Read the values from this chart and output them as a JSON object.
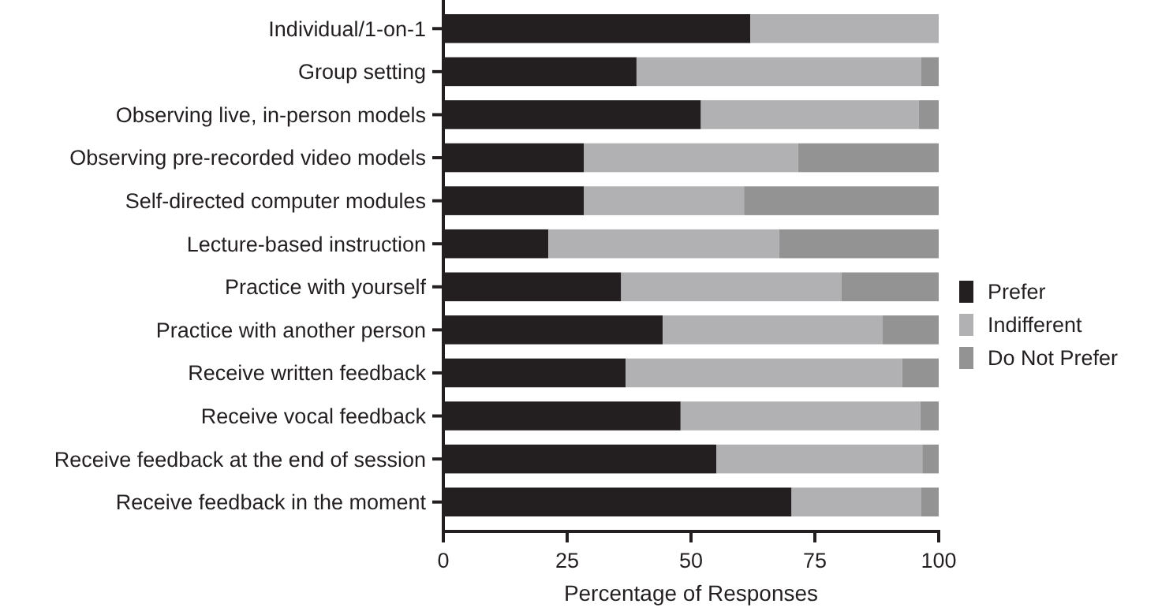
{
  "chart_data": {
    "type": "bar",
    "orientation": "horizontal",
    "stacked": true,
    "xlabel": "Percentage of Responses",
    "categories": [
      "Individual/1-on-1",
      "Group setting",
      "Observing live, in-person models",
      "Observing pre-recorded video models",
      "Self-directed computer modules",
      "Lecture-based instruction",
      "Practice with yourself",
      "Practice with another person",
      "Receive written feedback",
      "Receive vocal feedback",
      "Receive feedback at the end of session",
      "Receive feedback in the moment"
    ],
    "series": [
      {
        "name": "Prefer",
        "color": "#231f20",
        "values": [
          62,
          39,
          52,
          28.4,
          28.4,
          21.2,
          35.9,
          44.3,
          36.8,
          47.9,
          55.1,
          70.3
        ]
      },
      {
        "name": "Indifferent",
        "color": "#b1b1b3",
        "values": [
          38,
          57.5,
          44,
          43.2,
          32.3,
          46.6,
          44.5,
          44.4,
          55.8,
          48.4,
          41.6,
          26.1
        ]
      },
      {
        "name": "Do Not Prefer",
        "color": "#939393",
        "values": [
          0,
          3.5,
          4,
          28.4,
          39.3,
          32.2,
          19.6,
          11.3,
          7.4,
          3.7,
          3.3,
          3.6
        ]
      }
    ],
    "xlim": [
      0,
      100
    ],
    "xticks": [
      0,
      25,
      50,
      75,
      100
    ],
    "grid": false,
    "legend": "right"
  }
}
